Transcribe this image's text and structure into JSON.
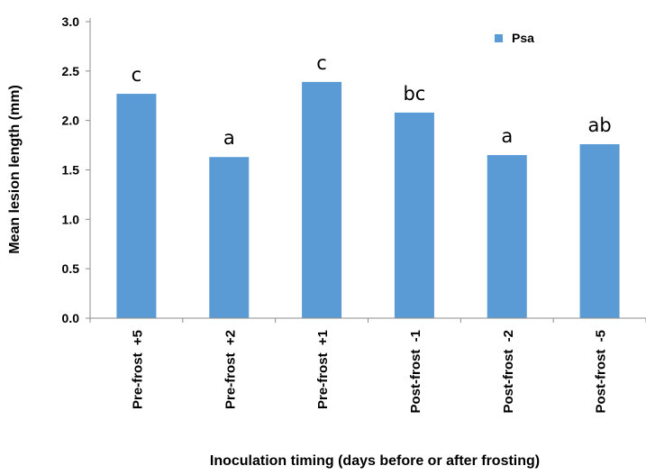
{
  "chart_data": {
    "type": "bar",
    "title": "",
    "xlabel": "Inoculation timing (days before or after frosting)",
    "ylabel": "Mean lesion length (mm)",
    "ylim": [
      0,
      3.0
    ],
    "yticks": [
      "0.0",
      "0.5",
      "1.0",
      "1.5",
      "2.0",
      "2.5",
      "3.0"
    ],
    "grid": false,
    "legend_position": "top-right",
    "color": "#5b9bd5",
    "categories": [
      "Pre-frost  +5",
      "Pre-frost  +2",
      "Pre-frost  +1",
      "Post-frost  -1",
      "Post-frost  -2",
      "Post-frost  -5"
    ],
    "series": [
      {
        "name": "Psa",
        "values": [
          2.27,
          1.63,
          2.39,
          2.08,
          1.65,
          1.76
        ],
        "letters": [
          "c",
          "a",
          "c",
          "bc",
          "a",
          "ab"
        ]
      }
    ]
  }
}
